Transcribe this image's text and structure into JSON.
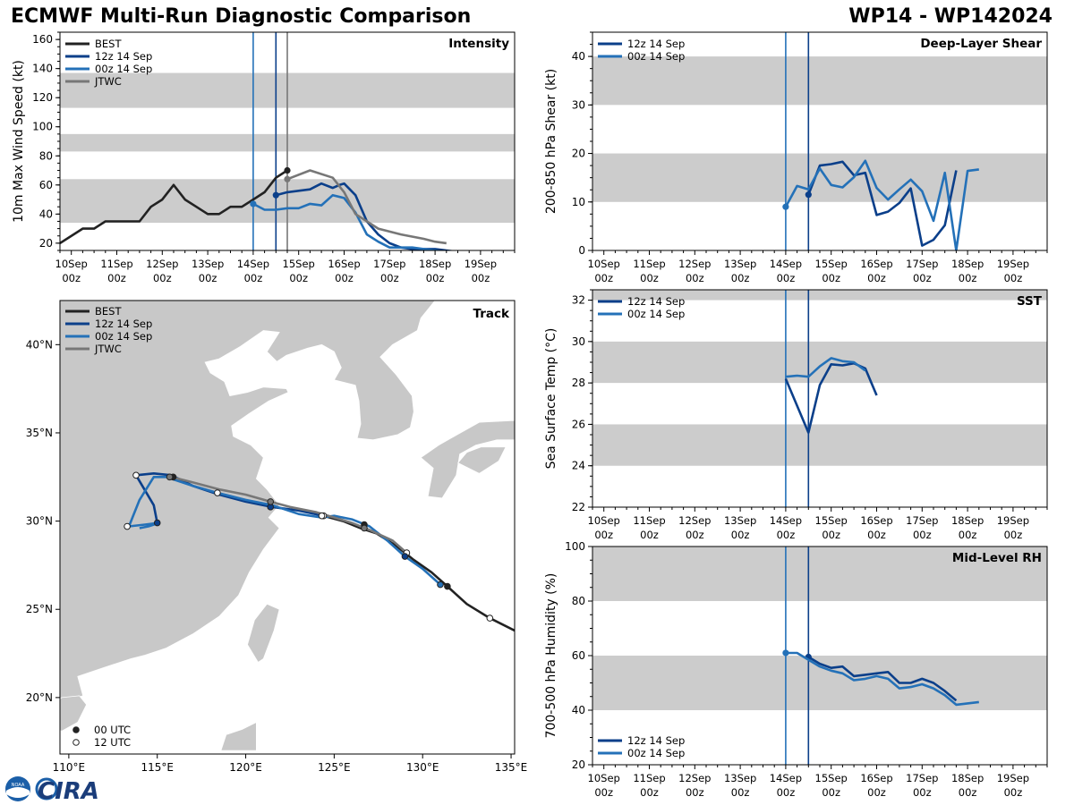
{
  "figure": {
    "title_left": "ECMWF Multi-Run Diagnostic Comparison",
    "title_right": "WP14 - WP142024",
    "logo_text": "CIRA",
    "logo_small_text": "NOAA",
    "colors": {
      "best": "#222222",
      "run12": "#0b3f8a",
      "run00": "#2471b8",
      "jtwc": "#777777",
      "band": "#cccccc",
      "land": "#c8c8c8"
    }
  },
  "chart_data": [
    {
      "id": "intensity",
      "type": "line",
      "title": "Intensity",
      "ylabel": "10m Max Wind Speed (kt)",
      "ylim": [
        15,
        165
      ],
      "yticks": [
        20,
        40,
        60,
        80,
        100,
        120,
        140,
        160
      ],
      "xlim": [
        -0.25,
        9.75
      ],
      "xtick_labels": [
        [
          "10Sep",
          "00z"
        ],
        [
          "11Sep",
          "00z"
        ],
        [
          "12Sep",
          "00z"
        ],
        [
          "13Sep",
          "00z"
        ],
        [
          "14Sep",
          "00z"
        ],
        [
          "15Sep",
          "00z"
        ],
        [
          "16Sep",
          "00z"
        ],
        [
          "17Sep",
          "00z"
        ],
        [
          "18Sep",
          "00z"
        ],
        [
          "19Sep",
          "00z"
        ]
      ],
      "bands": [
        [
          34,
          64
        ],
        [
          83,
          95
        ],
        [
          113,
          137
        ]
      ],
      "vlines": [
        {
          "x": 4.0,
          "series": "00z 14 Sep"
        },
        {
          "x": 4.5,
          "series": "12z 14 Sep"
        },
        {
          "x": 4.75,
          "series": "JTWC"
        }
      ],
      "legend": [
        "BEST",
        "12z 14 Sep",
        "00z 14 Sep",
        "JTWC"
      ],
      "series": [
        {
          "name": "BEST",
          "x": [
            -0.25,
            0.25,
            0.5,
            0.75,
            1.0,
            1.25,
            1.5,
            1.75,
            2.0,
            2.25,
            2.5,
            2.75,
            3.0,
            3.25,
            3.5,
            3.75,
            4.0,
            4.25,
            4.5,
            4.75
          ],
          "y": [
            20,
            30,
            30,
            35,
            35,
            35,
            35,
            45,
            50,
            60,
            50,
            45,
            40,
            40,
            45,
            45,
            50,
            55,
            65,
            70
          ],
          "marker": {
            "x": 4.75,
            "y": 70
          }
        },
        {
          "name": "12z 14 Sep",
          "x": [
            4.5,
            4.75,
            5.0,
            5.25,
            5.5,
            5.75,
            5.9,
            6.0,
            6.25,
            6.5,
            6.75,
            7.0,
            7.25,
            7.5,
            7.75,
            8.0,
            8.25,
            8.5
          ],
          "y": [
            53,
            55,
            56,
            57,
            61,
            58,
            60,
            61,
            53,
            35,
            26,
            20,
            17,
            16,
            16,
            16,
            15,
            14
          ],
          "marker": {
            "x": 4.5,
            "y": 53
          }
        },
        {
          "name": "00z 14 Sep",
          "x": [
            4.0,
            4.25,
            4.5,
            4.75,
            5.0,
            5.25,
            5.5,
            5.75,
            6.0,
            6.25,
            6.5,
            6.75,
            7.0,
            7.25,
            7.5,
            7.75,
            8.0,
            8.25,
            8.5
          ],
          "y": [
            47,
            43,
            43,
            44,
            44,
            47,
            46,
            53,
            51,
            41,
            26,
            21,
            17,
            17,
            17,
            16,
            15,
            14,
            14
          ],
          "marker": {
            "x": 4.0,
            "y": 47
          }
        },
        {
          "name": "JTWC",
          "x": [
            4.75,
            5.25,
            5.75,
            6.0,
            6.25,
            6.75,
            7.25,
            7.75,
            8.0,
            8.25
          ],
          "y": [
            64,
            70,
            65,
            55,
            40,
            30,
            26,
            23,
            21,
            20
          ],
          "marker": {
            "x": 4.75,
            "y": 64
          }
        }
      ]
    },
    {
      "id": "shear",
      "type": "line",
      "title": "Deep-Layer Shear",
      "ylabel": "200-850 hPa Shear (kt)",
      "ylim": [
        0,
        45
      ],
      "yticks": [
        0,
        10,
        20,
        30,
        40
      ],
      "xlim": [
        -0.25,
        9.75
      ],
      "xtick_labels": [
        [
          "10Sep",
          "00z"
        ],
        [
          "11Sep",
          "00z"
        ],
        [
          "12Sep",
          "00z"
        ],
        [
          "13Sep",
          "00z"
        ],
        [
          "14Sep",
          "00z"
        ],
        [
          "15Sep",
          "00z"
        ],
        [
          "16Sep",
          "00z"
        ],
        [
          "17Sep",
          "00z"
        ],
        [
          "18Sep",
          "00z"
        ],
        [
          "19Sep",
          "00z"
        ]
      ],
      "bands": [
        [
          10,
          20
        ],
        [
          30,
          40
        ]
      ],
      "vlines": [
        {
          "x": 4.0,
          "series": "00z 14 Sep"
        },
        {
          "x": 4.5,
          "series": "12z 14 Sep"
        }
      ],
      "legend": [
        "12z 14 Sep",
        "00z 14 Sep"
      ],
      "series": [
        {
          "name": "12z 14 Sep",
          "x": [
            4.5,
            4.75,
            5.0,
            5.25,
            5.5,
            5.75,
            6.0,
            6.25,
            6.5,
            6.75,
            7.0,
            7.25,
            7.5,
            7.75,
            8.0
          ],
          "y": [
            11.5,
            17.5,
            17.8,
            18.3,
            15.5,
            16.0,
            7.3,
            8.0,
            9.8,
            12.8,
            1.0,
            2.2,
            5.2,
            16.5,
            null
          ],
          "marker": {
            "x": 4.5,
            "y": 11.5
          }
        },
        {
          "name": "00z 14 Sep",
          "x": [
            4.0,
            4.25,
            4.5,
            4.75,
            5.0,
            5.25,
            5.5,
            5.75,
            6.0,
            6.25,
            6.5,
            6.75,
            7.0,
            7.25,
            7.5,
            7.75,
            8.0,
            8.25
          ],
          "y": [
            9.0,
            13.3,
            12.6,
            16.9,
            13.5,
            13.0,
            15.1,
            18.5,
            12.9,
            10.5,
            12.6,
            14.6,
            12.2,
            6.1,
            16.0,
            0.0,
            16.4,
            16.7
          ],
          "marker": {
            "x": 4.0,
            "y": 9.0
          }
        }
      ]
    },
    {
      "id": "sst",
      "type": "line",
      "title": "SST",
      "ylabel": "Sea Surface Temp (°C)",
      "ylim": [
        22,
        32.5
      ],
      "yticks": [
        22,
        24,
        26,
        28,
        30,
        32
      ],
      "xlim": [
        -0.25,
        9.75
      ],
      "xtick_labels": [
        [
          "10Sep",
          "00z"
        ],
        [
          "11Sep",
          "00z"
        ],
        [
          "12Sep",
          "00z"
        ],
        [
          "13Sep",
          "00z"
        ],
        [
          "14Sep",
          "00z"
        ],
        [
          "15Sep",
          "00z"
        ],
        [
          "16Sep",
          "00z"
        ],
        [
          "17Sep",
          "00z"
        ],
        [
          "18Sep",
          "00z"
        ],
        [
          "19Sep",
          "00z"
        ]
      ],
      "bands": [
        [
          24,
          26
        ],
        [
          28,
          30
        ],
        [
          32,
          32.5
        ]
      ],
      "vlines": [
        {
          "x": 4.0,
          "series": "00z 14 Sep"
        },
        {
          "x": 4.5,
          "series": "12z 14 Sep"
        }
      ],
      "legend": [
        "12z 14 Sep",
        "00z 14 Sep"
      ],
      "series": [
        {
          "name": "12z 14 Sep",
          "x": [
            4.0,
            4.5,
            4.75,
            5.0,
            5.25,
            5.5,
            5.75,
            6.0
          ],
          "y": [
            28.2,
            25.6,
            27.9,
            28.9,
            28.85,
            28.95,
            28.7,
            27.4
          ]
        },
        {
          "name": "00z 14 Sep",
          "x": [
            4.0,
            4.25,
            4.5,
            4.75,
            5.0,
            5.25,
            5.5,
            5.75
          ],
          "y": [
            28.3,
            28.35,
            28.3,
            28.8,
            29.2,
            29.05,
            29.0,
            28.6
          ]
        }
      ]
    },
    {
      "id": "rh",
      "type": "line",
      "title": "Mid-Level RH",
      "ylabel": "700-500 hPa Humidity (%)",
      "ylim": [
        20,
        100
      ],
      "yticks": [
        20,
        40,
        60,
        80,
        100
      ],
      "xlim": [
        -0.25,
        9.75
      ],
      "xtick_labels": [
        [
          "10Sep",
          "00z"
        ],
        [
          "11Sep",
          "00z"
        ],
        [
          "12Sep",
          "00z"
        ],
        [
          "13Sep",
          "00z"
        ],
        [
          "14Sep",
          "00z"
        ],
        [
          "15Sep",
          "00z"
        ],
        [
          "16Sep",
          "00z"
        ],
        [
          "17Sep",
          "00z"
        ],
        [
          "18Sep",
          "00z"
        ],
        [
          "19Sep",
          "00z"
        ]
      ],
      "bands": [
        [
          40,
          60
        ],
        [
          80,
          100
        ]
      ],
      "vlines": [
        {
          "x": 4.0,
          "series": "00z 14 Sep"
        },
        {
          "x": 4.5,
          "series": "12z 14 Sep"
        }
      ],
      "legend": [
        "12z 14 Sep",
        "00z 14 Sep"
      ],
      "series": [
        {
          "name": "12z 14 Sep",
          "x": [
            4.5,
            4.75,
            5.0,
            5.25,
            5.5,
            5.75,
            6.0,
            6.25,
            6.5,
            6.75,
            7.0,
            7.25,
            7.5,
            7.75
          ],
          "y": [
            59.5,
            57.0,
            55.5,
            56.0,
            52.5,
            53.0,
            53.5,
            54.0,
            50.0,
            50.0,
            51.5,
            50.0,
            47.0,
            43.5
          ],
          "marker": {
            "x": 4.5,
            "y": 59.5
          }
        },
        {
          "name": "00z 14 Sep",
          "x": [
            4.0,
            4.25,
            4.5,
            4.75,
            5.0,
            5.25,
            5.5,
            5.75,
            6.0,
            6.25,
            6.5,
            6.75,
            7.0,
            7.25,
            7.5,
            7.75,
            8.0,
            8.25
          ],
          "y": [
            61.0,
            61.0,
            58.5,
            56.0,
            54.5,
            53.5,
            51.0,
            51.5,
            52.5,
            51.5,
            48.0,
            48.5,
            49.5,
            48.0,
            45.5,
            42.0,
            42.5,
            43.0
          ],
          "marker": {
            "x": 4.0,
            "y": 61.0
          }
        }
      ]
    },
    {
      "id": "track",
      "type": "scatter",
      "title": "Track",
      "xlim": [
        109.5,
        135.2
      ],
      "ylim": [
        16.8,
        42.5
      ],
      "xticks": [
        110,
        115,
        120,
        125,
        130,
        135
      ],
      "yticks": [
        20,
        25,
        30,
        35,
        40
      ],
      "xtick_labels": [
        "110°E",
        "115°E",
        "120°E",
        "125°E",
        "130°E",
        "135°E"
      ],
      "ytick_labels": [
        "20°N",
        "25°N",
        "30°N",
        "35°N",
        "40°N"
      ],
      "legend": [
        "BEST",
        "12z 14 Sep",
        "00z 14 Sep",
        "JTWC"
      ],
      "marker_legend": [
        "00 UTC",
        "12 UTC"
      ],
      "series": [
        {
          "name": "BEST",
          "lon": [
            135.2,
            133.8,
            132.5,
            131.4,
            130.5,
            129.5,
            128.5,
            127.4,
            126.5,
            125.5,
            124.4
          ],
          "lat": [
            23.8,
            24.5,
            25.3,
            26.3,
            27.1,
            27.8,
            28.6,
            29.3,
            29.6,
            30.0,
            30.3
          ]
        },
        {
          "name": "12z 14 Sep",
          "lon": [
            124.4,
            123.0,
            121.5,
            120.0,
            118.5,
            117.0,
            115.8,
            114.8,
            113.8,
            114.8,
            115.0
          ],
          "lat": [
            30.3,
            30.6,
            30.8,
            31.1,
            31.5,
            32.0,
            32.6,
            32.7,
            32.6,
            30.9,
            29.9
          ]
        },
        {
          "name": "00z 14 Sep",
          "lon": [
            131.0,
            130.0,
            129.0,
            128.0,
            127.0,
            126.0,
            125.0,
            124.3,
            123.0,
            121.5,
            120.0,
            118.4,
            117.0,
            115.5,
            114.8,
            114.0,
            113.6,
            113.4,
            114.3,
            115.1,
            114.5,
            114.0
          ],
          "lat": [
            26.4,
            27.3,
            28.0,
            28.9,
            29.7,
            30.1,
            30.3,
            30.2,
            30.4,
            30.9,
            31.2,
            31.6,
            32.0,
            32.5,
            32.5,
            31.2,
            30.2,
            29.7,
            29.8,
            29.9,
            29.7,
            29.6
          ]
        },
        {
          "name": "JTWC",
          "lon": [
            129.1,
            128.3,
            127.0,
            126.0,
            125.0,
            124.0,
            122.5,
            121.4,
            120.0,
            118.5,
            117.0,
            115.8
          ],
          "lat": [
            28.2,
            28.9,
            29.5,
            29.9,
            30.2,
            30.5,
            30.8,
            31.1,
            31.5,
            31.8,
            32.2,
            32.5
          ]
        }
      ],
      "points": [
        {
          "lon": 133.8,
          "lat": 24.5,
          "utc": "12"
        },
        {
          "lon": 131.4,
          "lat": 26.3,
          "utc": "00",
          "series": "BEST"
        },
        {
          "lon": 131.0,
          "lat": 26.4,
          "utc": "00",
          "series": "00z 14 Sep"
        },
        {
          "lon": 129.1,
          "lat": 28.2,
          "utc": "12",
          "series": "JTWC"
        },
        {
          "lon": 129.0,
          "lat": 28.0,
          "utc": "00",
          "series": "12z 14 Sep"
        },
        {
          "lon": 126.7,
          "lat": 29.8,
          "utc": "00",
          "series": "BEST"
        },
        {
          "lon": 126.7,
          "lat": 29.6,
          "utc": "00",
          "series": "JTWC"
        },
        {
          "lon": 124.4,
          "lat": 30.3,
          "utc": "12"
        },
        {
          "lon": 124.3,
          "lat": 30.3,
          "utc": "12"
        },
        {
          "lon": 121.4,
          "lat": 30.8,
          "utc": "00",
          "series": "12z 14 Sep"
        },
        {
          "lon": 121.4,
          "lat": 31.1,
          "utc": "00",
          "series": "JTWC"
        },
        {
          "lon": 118.4,
          "lat": 31.6,
          "utc": "12"
        },
        {
          "lon": 115.9,
          "lat": 32.5,
          "utc": "00",
          "series": "BEST"
        },
        {
          "lon": 115.7,
          "lat": 32.5,
          "utc": "00",
          "series": "JTWC"
        },
        {
          "lon": 113.8,
          "lat": 32.6,
          "utc": "12"
        },
        {
          "lon": 115.0,
          "lat": 29.9,
          "utc": "00",
          "series": "12z 14 Sep"
        },
        {
          "lon": 113.3,
          "lat": 29.7,
          "utc": "12"
        }
      ]
    }
  ]
}
